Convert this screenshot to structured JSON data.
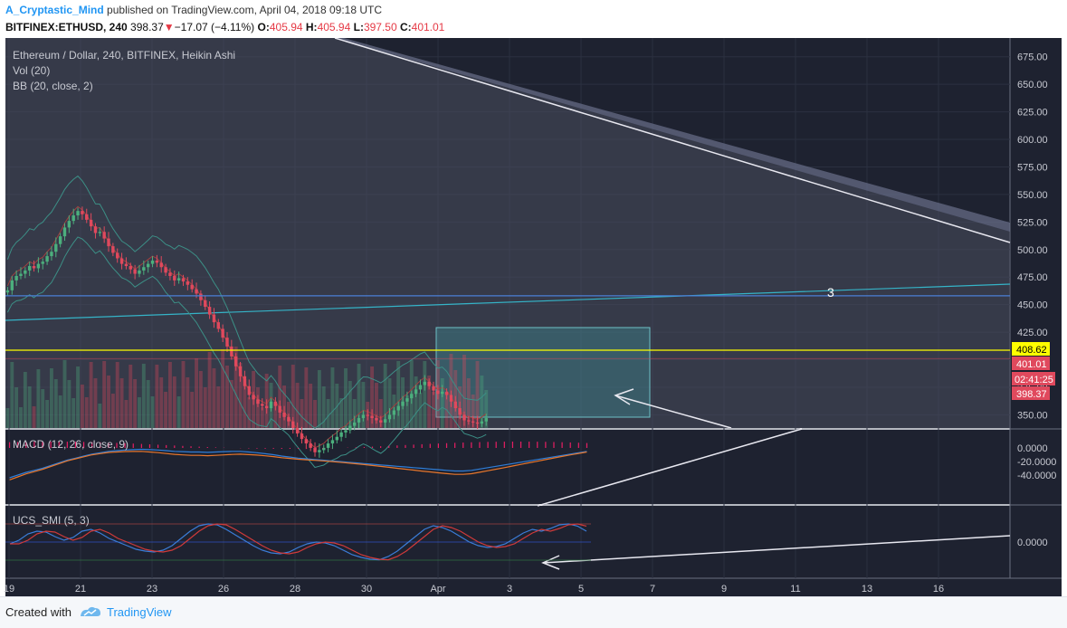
{
  "header": {
    "author": "A_Cryptastic_Mind",
    "published": "published on TradingView.com, April 04, 2018 09:18 UTC",
    "symbol": "BITFINEX:ETHUSD, 240",
    "last_price": "398.37",
    "change_arrow": "▼",
    "change": "−17.07 (−4.11%)",
    "o_label": "O:",
    "o_value": "405.94",
    "h_label": "H:",
    "h_value": "405.94",
    "l_label": "L:",
    "l_value": "397.50",
    "c_label": "C:",
    "c_value": "401.01"
  },
  "legend": {
    "title": "Ethereum / Dollar, 240, BITFINEX, Heikin Ashi",
    "vol": "Vol (20)",
    "bb": "BB (20, close, 2)",
    "macd": "MACD (12, 26, close, 9)",
    "smi": "UCS_SMI (5, 3)"
  },
  "annotations": {
    "wave_label": "3"
  },
  "price_tags": {
    "yellow": "408.62",
    "close": "401.01",
    "countdown": "02:41:25",
    "last": "398.37"
  },
  "footer": {
    "created_with": "Created with",
    "brand": "TradingView"
  },
  "colors": {
    "background": "#1e2230",
    "up": "#4caf7d",
    "down": "#e0495d",
    "yellow_line": "#ffff00",
    "blue_line": "#4a7fd6",
    "macd_line": "#2f7ed8",
    "signal_line": "#e8762b",
    "histogram": "#e91e63"
  },
  "chart_data": {
    "type": "candlestick",
    "series": [
      {
        "name": "ETHUSD Heikin Ashi"
      }
    ],
    "price_axis": [
      "675.00",
      "650.00",
      "625.00",
      "600.00",
      "575.00",
      "550.00",
      "525.00",
      "500.00",
      "475.00",
      "450.00",
      "425.00",
      "400.00",
      "375.00",
      "350.00"
    ],
    "macd_axis": [
      "0.0000",
      "-20.0000",
      "-40.0000"
    ],
    "smi_axis": [
      "0.0000"
    ],
    "time_axis": [
      "19",
      "21",
      "23",
      "26",
      "28",
      "30",
      "Apr",
      "3",
      "5",
      "7",
      "9",
      "11",
      "13",
      "16"
    ],
    "ylim": [
      338,
      692
    ],
    "yellow_level": 408.62,
    "blue_level": 458,
    "ha_closes": [
      463,
      472,
      476,
      478,
      481,
      485,
      483,
      487,
      489,
      494,
      498,
      505,
      512,
      520,
      526,
      531,
      535,
      532,
      527,
      521,
      515,
      516,
      510,
      503,
      497,
      492,
      487,
      485,
      482,
      478,
      481,
      484,
      487,
      490,
      488,
      484,
      479,
      476,
      472,
      474,
      471,
      468,
      464,
      460,
      454,
      448,
      441,
      434,
      428,
      420,
      412,
      403,
      394,
      385,
      376,
      368,
      364,
      360,
      358,
      356,
      362,
      358,
      352,
      348,
      344,
      338,
      333,
      328,
      324,
      320,
      316,
      318,
      320,
      324,
      327,
      330,
      334,
      336,
      340,
      343,
      347,
      350,
      349,
      347,
      345,
      343,
      346,
      350,
      354,
      358,
      362,
      365,
      369,
      373,
      377,
      380,
      376,
      372,
      369,
      371,
      368,
      362,
      356,
      350,
      345,
      344,
      343,
      342,
      344,
      347
    ],
    "macd": [
      -44,
      -40,
      -36,
      -33,
      -30,
      -26,
      -22,
      -18,
      -15,
      -12,
      -9,
      -7,
      -5,
      -4,
      -3,
      -2.5,
      -2,
      -2.5,
      -3,
      -4,
      -5,
      -5.5,
      -6,
      -6,
      -6.5,
      -6,
      -5.5,
      -5,
      -5,
      -6,
      -7,
      -8.5,
      -10,
      -12,
      -13.5,
      -15,
      -16,
      -17,
      -18,
      -19,
      -20,
      -21,
      -22,
      -23,
      -24,
      -25,
      -26,
      -27,
      -28,
      -29,
      -30,
      -31,
      -32,
      -33,
      -34,
      -34,
      -33,
      -31,
      -29,
      -27,
      -25,
      -23,
      -21,
      -19,
      -17,
      -15,
      -13,
      -11,
      -9,
      -7,
      -5
    ],
    "smi": [
      -10,
      10,
      45,
      60,
      55,
      30,
      10,
      25,
      60,
      70,
      50,
      20,
      0,
      -20,
      -40,
      -50,
      -55,
      -45,
      -20,
      20,
      60,
      90,
      100,
      95,
      70,
      40,
      10,
      -20,
      -45,
      -60,
      -65,
      -55,
      -30,
      -10,
      0,
      -5,
      -20,
      -45,
      -70,
      -85,
      -95,
      -98,
      -80,
      -50,
      -10,
      30,
      70,
      90,
      80,
      60,
      30,
      0,
      -20,
      -30,
      -25,
      -10,
      20,
      50,
      70,
      60,
      75,
      95,
      100,
      88,
      60
    ]
  }
}
